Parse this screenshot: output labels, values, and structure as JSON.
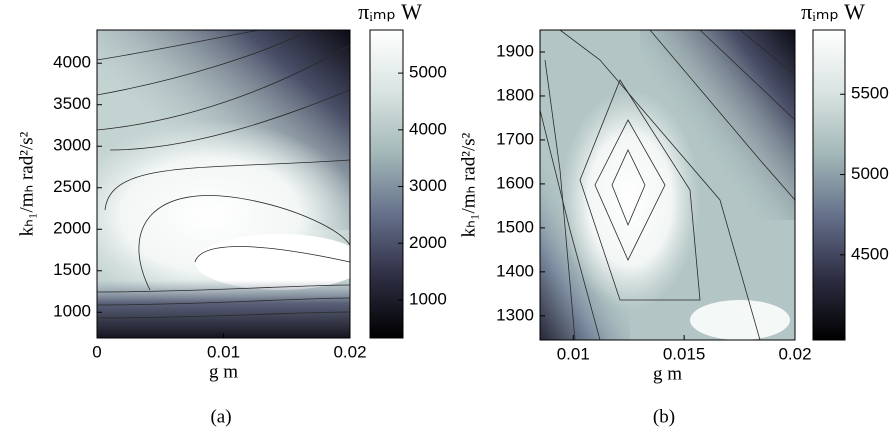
{
  "chart_data": [
    {
      "type": "contour",
      "caption": "(a)",
      "xlabel": "g m",
      "ylabel": "kₕ₁/mₕ rad²/s²",
      "xlim": [
        0,
        0.02
      ],
      "xticks": [
        0,
        0.01,
        0.02
      ],
      "ylim": [
        690,
        4400
      ],
      "yticks": [
        1000,
        1500,
        2000,
        2500,
        3000,
        3500,
        4000
      ],
      "colorbar": {
        "label": "πᵢₘₚ W",
        "lim": [
          330,
          5760
        ],
        "ticks": [
          1000,
          2000,
          3000,
          4000,
          5000
        ],
        "colormap": [
          "#000000",
          "#2e2e44",
          "#65708a",
          "#a3b8b8",
          "#d9e4e2",
          "#ffffff"
        ]
      }
    },
    {
      "type": "contour",
      "caption": "(b)",
      "xlabel": "g m",
      "ylabel": "kₕ₁/mₕ rad²/s²",
      "xlim": [
        0.0085,
        0.02
      ],
      "xticks": [
        0.01,
        0.015,
        0.02
      ],
      "ylim": [
        1245,
        1950
      ],
      "yticks": [
        1300,
        1400,
        1500,
        1600,
        1700,
        1800,
        1900
      ],
      "colorbar": {
        "label": "πᵢₘₚ W",
        "lim": [
          3970,
          5900
        ],
        "ticks": [
          4500,
          5000,
          5500
        ],
        "colormap": [
          "#000000",
          "#2e2e44",
          "#65708a",
          "#a3b8b8",
          "#d9e4e2",
          "#ffffff"
        ]
      }
    }
  ]
}
